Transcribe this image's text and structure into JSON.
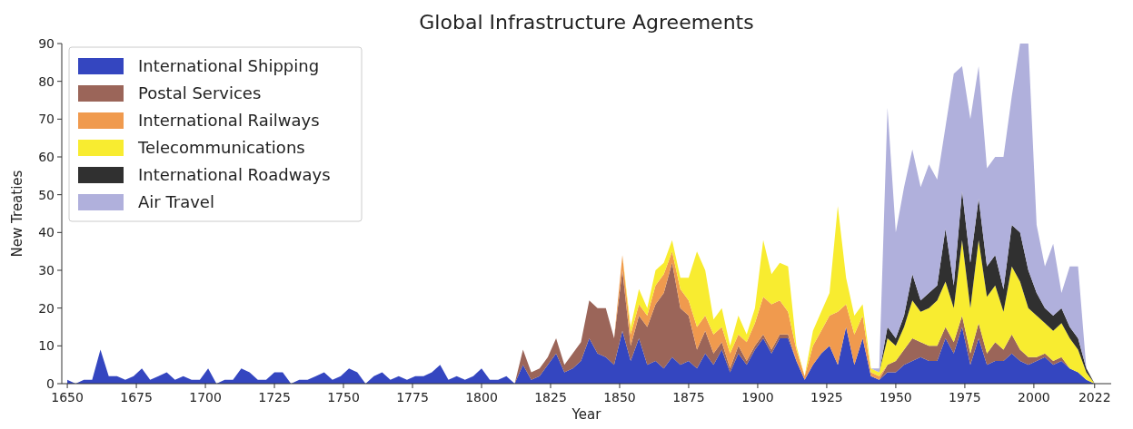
{
  "chart_data": {
    "type": "area",
    "stacked": true,
    "title": "Global Infrastructure Agreements",
    "xlabel": "Year",
    "ylabel": "New Treaties",
    "x": [
      1650,
      1653,
      1656,
      1659,
      1662,
      1665,
      1668,
      1671,
      1674,
      1677,
      1680,
      1683,
      1686,
      1689,
      1692,
      1695,
      1698,
      1701,
      1704,
      1707,
      1710,
      1713,
      1716,
      1719,
      1722,
      1725,
      1728,
      1731,
      1734,
      1737,
      1740,
      1743,
      1746,
      1749,
      1752,
      1755,
      1758,
      1761,
      1764,
      1767,
      1770,
      1773,
      1776,
      1779,
      1782,
      1785,
      1788,
      1791,
      1794,
      1797,
      1800,
      1803,
      1806,
      1809,
      1812,
      1815,
      1818,
      1821,
      1824,
      1827,
      1830,
      1833,
      1836,
      1839,
      1842,
      1845,
      1848,
      1851,
      1854,
      1857,
      1860,
      1863,
      1866,
      1869,
      1872,
      1875,
      1878,
      1881,
      1884,
      1887,
      1890,
      1893,
      1896,
      1899,
      1902,
      1905,
      1908,
      1911,
      1914,
      1917,
      1920,
      1923,
      1926,
      1929,
      1932,
      1935,
      1938,
      1941,
      1944,
      1947,
      1950,
      1953,
      1956,
      1959,
      1962,
      1965,
      1968,
      1971,
      1974,
      1977,
      1980,
      1983,
      1986,
      1989,
      1992,
      1995,
      1998,
      2001,
      2004,
      2007,
      2010,
      2013,
      2016,
      2019,
      2022
    ],
    "series": [
      {
        "name": "International Shipping",
        "color": "#3446c0",
        "values": [
          1,
          0,
          1,
          1,
          9,
          2,
          2,
          1,
          2,
          4,
          1,
          2,
          3,
          1,
          2,
          1,
          1,
          4,
          0,
          1,
          1,
          4,
          3,
          1,
          1,
          3,
          3,
          0,
          1,
          1,
          2,
          3,
          1,
          2,
          4,
          3,
          0,
          2,
          3,
          1,
          2,
          1,
          2,
          2,
          3,
          5,
          1,
          2,
          1,
          2,
          4,
          1,
          1,
          2,
          0,
          5,
          1,
          2,
          5,
          8,
          3,
          4,
          6,
          12,
          8,
          7,
          5,
          14,
          6,
          12,
          5,
          6,
          4,
          7,
          5,
          6,
          4,
          8,
          5,
          9,
          3,
          8,
          5,
          9,
          12,
          8,
          12,
          12,
          6,
          1,
          5,
          8,
          10,
          5,
          15,
          5,
          12,
          2,
          1,
          3,
          3,
          5,
          6,
          7,
          6,
          6,
          12,
          8,
          15,
          5,
          12,
          5,
          6,
          6,
          8,
          6,
          5,
          6,
          7,
          5,
          6,
          4,
          3,
          1,
          0
        ]
      },
      {
        "name": "Postal Services",
        "color": "#9b6559",
        "values": [
          0,
          0,
          0,
          0,
          0,
          0,
          0,
          0,
          0,
          0,
          0,
          0,
          0,
          0,
          0,
          0,
          0,
          0,
          0,
          0,
          0,
          0,
          0,
          0,
          0,
          0,
          0,
          0,
          0,
          0,
          0,
          0,
          0,
          0,
          0,
          0,
          0,
          0,
          0,
          0,
          0,
          0,
          0,
          0,
          0,
          0,
          0,
          0,
          0,
          0,
          0,
          0,
          0,
          0,
          0,
          4,
          2,
          2,
          2,
          4,
          2,
          4,
          5,
          10,
          12,
          13,
          7,
          16,
          4,
          6,
          10,
          15,
          20,
          25,
          15,
          12,
          5,
          6,
          3,
          2,
          1,
          2,
          1,
          1,
          1,
          1,
          1,
          1,
          0,
          0,
          0,
          0,
          0,
          0,
          0,
          0,
          0,
          0,
          0,
          2,
          3,
          4,
          6,
          4,
          4,
          4,
          3,
          3,
          3,
          3,
          4,
          3,
          5,
          3,
          5,
          3,
          2,
          1,
          1,
          1,
          1,
          0,
          0,
          0,
          0
        ]
      },
      {
        "name": "International Railways",
        "color": "#f09a4e",
        "values": [
          0,
          0,
          0,
          0,
          0,
          0,
          0,
          0,
          0,
          0,
          0,
          0,
          0,
          0,
          0,
          0,
          0,
          0,
          0,
          0,
          0,
          0,
          0,
          0,
          0,
          0,
          0,
          0,
          0,
          0,
          0,
          0,
          0,
          0,
          0,
          0,
          0,
          0,
          0,
          0,
          0,
          0,
          0,
          0,
          0,
          0,
          0,
          0,
          0,
          0,
          0,
          0,
          0,
          0,
          0,
          0,
          0,
          0,
          0,
          0,
          0,
          0,
          0,
          0,
          0,
          0,
          0,
          4,
          3,
          3,
          3,
          5,
          5,
          3,
          5,
          4,
          6,
          4,
          5,
          4,
          4,
          3,
          5,
          6,
          10,
          12,
          9,
          6,
          3,
          1,
          5,
          6,
          8,
          14,
          6,
          8,
          6,
          1,
          1,
          0,
          0,
          0,
          0,
          0,
          0,
          0,
          0,
          0,
          0,
          0,
          0,
          0,
          0,
          0,
          0,
          0,
          0,
          0,
          0,
          0,
          0,
          0,
          0,
          0,
          0
        ]
      },
      {
        "name": "Telecommunications",
        "color": "#f8ec30",
        "values": [
          0,
          0,
          0,
          0,
          0,
          0,
          0,
          0,
          0,
          0,
          0,
          0,
          0,
          0,
          0,
          0,
          0,
          0,
          0,
          0,
          0,
          0,
          0,
          0,
          0,
          0,
          0,
          0,
          0,
          0,
          0,
          0,
          0,
          0,
          0,
          0,
          0,
          0,
          0,
          0,
          0,
          0,
          0,
          0,
          0,
          0,
          0,
          0,
          0,
          0,
          0,
          0,
          0,
          0,
          0,
          0,
          0,
          0,
          0,
          0,
          0,
          0,
          0,
          0,
          0,
          0,
          0,
          0,
          2,
          4,
          2,
          4,
          3,
          3,
          3,
          6,
          20,
          12,
          4,
          5,
          2,
          5,
          2,
          4,
          15,
          8,
          10,
          12,
          1,
          0,
          4,
          5,
          6,
          28,
          7,
          5,
          3,
          1,
          1,
          7,
          4,
          6,
          10,
          8,
          10,
          12,
          12,
          9,
          20,
          12,
          22,
          15,
          15,
          10,
          18,
          18,
          13,
          11,
          8,
          8,
          9,
          8,
          6,
          2,
          0
        ]
      },
      {
        "name": "International Roadways",
        "color": "#303030",
        "values": [
          0,
          0,
          0,
          0,
          0,
          0,
          0,
          0,
          0,
          0,
          0,
          0,
          0,
          0,
          0,
          0,
          0,
          0,
          0,
          0,
          0,
          0,
          0,
          0,
          0,
          0,
          0,
          0,
          0,
          0,
          0,
          0,
          0,
          0,
          0,
          0,
          0,
          0,
          0,
          0,
          0,
          0,
          0,
          0,
          0,
          0,
          0,
          0,
          0,
          0,
          0,
          0,
          0,
          0,
          0,
          0,
          0,
          0,
          0,
          0,
          0,
          0,
          0,
          0,
          0,
          0,
          0,
          0,
          0,
          0,
          0,
          0,
          0,
          0,
          0,
          0,
          0,
          0,
          0,
          0,
          0,
          0,
          0,
          0,
          0,
          0,
          0,
          0,
          0,
          0,
          0,
          0,
          0,
          0,
          0,
          0,
          0,
          0,
          0,
          3,
          2,
          3,
          7,
          3,
          4,
          4,
          14,
          6,
          13,
          12,
          11,
          8,
          8,
          6,
          11,
          13,
          10,
          6,
          4,
          4,
          4,
          3,
          3,
          1,
          0
        ]
      },
      {
        "name": "Air Travel",
        "color": "#b0b0dc",
        "values": [
          0,
          0,
          0,
          0,
          0,
          0,
          0,
          0,
          0,
          0,
          0,
          0,
          0,
          0,
          0,
          0,
          0,
          0,
          0,
          0,
          0,
          0,
          0,
          0,
          0,
          0,
          0,
          0,
          0,
          0,
          0,
          0,
          0,
          0,
          0,
          0,
          0,
          0,
          0,
          0,
          0,
          0,
          0,
          0,
          0,
          0,
          0,
          0,
          0,
          0,
          0,
          0,
          0,
          0,
          0,
          0,
          0,
          0,
          0,
          0,
          0,
          0,
          0,
          0,
          0,
          0,
          0,
          0,
          0,
          0,
          0,
          0,
          0,
          0,
          0,
          0,
          0,
          0,
          0,
          0,
          0,
          0,
          0,
          0,
          0,
          0,
          0,
          0,
          0,
          0,
          0,
          0,
          0,
          0,
          0,
          0,
          0,
          0,
          1,
          58,
          28,
          34,
          33,
          30,
          34,
          28,
          27,
          56,
          33,
          38,
          35,
          26,
          26,
          35,
          34,
          50,
          60,
          18,
          11,
          19,
          4,
          16,
          19,
          0,
          0
        ]
      }
    ],
    "xlim": [
      1648,
      2028
    ],
    "xticks": [
      1650,
      1675,
      1700,
      1725,
      1750,
      1775,
      1800,
      1825,
      1850,
      1875,
      1900,
      1925,
      1950,
      1975,
      2000,
      2022
    ],
    "ylim": [
      0,
      90
    ],
    "yticks": [
      0,
      10,
      20,
      30,
      40,
      50,
      60,
      70,
      80,
      90
    ],
    "legend": "top left",
    "grid": false
  }
}
